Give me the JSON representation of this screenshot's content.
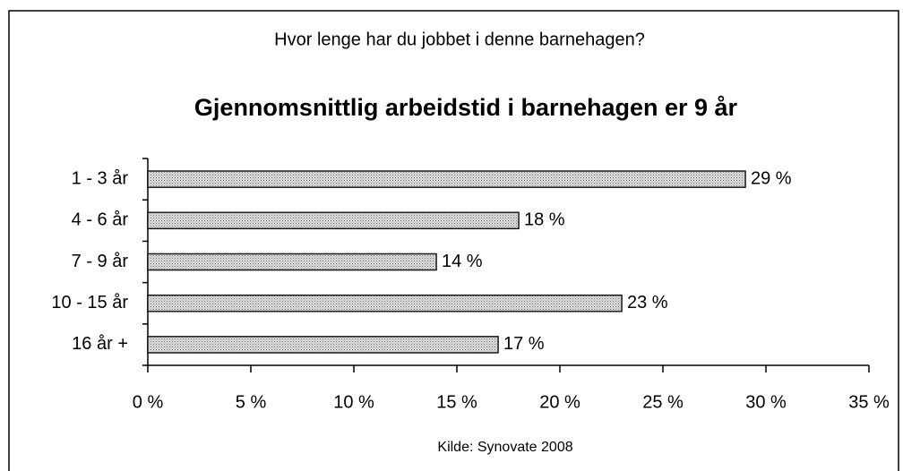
{
  "chart_data": {
    "type": "bar",
    "orientation": "horizontal",
    "subtitle": "Hvor lenge har du jobbet i denne barnehagen?",
    "title": "Gjennomsnittlig arbeidstid i barnehagen er 9 år",
    "source": "Kilde: Synovate 2008",
    "categories": [
      "1 - 3 år",
      "4 - 6 år",
      "7 - 9 år",
      "10 - 15 år",
      "16 år +"
    ],
    "values": [
      29,
      18,
      14,
      23,
      17
    ],
    "value_labels": [
      "29 %",
      "18 %",
      "14 %",
      "23 %",
      "17 %"
    ],
    "color": "#c8c8c8",
    "xlim": [
      0,
      35
    ],
    "xticks": [
      {
        "value": 0,
        "label": "0 %"
      },
      {
        "value": 5,
        "label": "5 %"
      },
      {
        "value": 10,
        "label": "10 %"
      },
      {
        "value": 15,
        "label": "15 %"
      },
      {
        "value": 20,
        "label": "20 %"
      },
      {
        "value": 25,
        "label": "25 %"
      },
      {
        "value": 30,
        "label": "30 %"
      },
      {
        "value": 35,
        "label": "35 %"
      }
    ],
    "grid": false
  }
}
